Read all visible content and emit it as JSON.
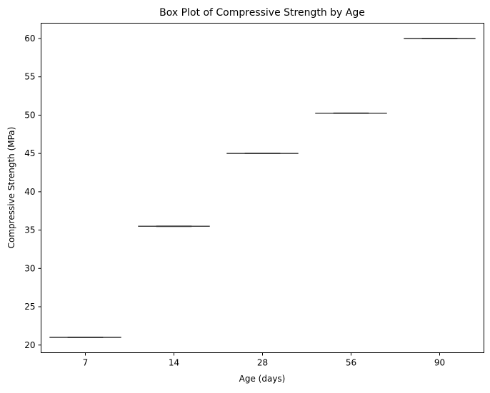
{
  "chart_data": {
    "type": "box",
    "title": "Box Plot of Compressive Strength by Age",
    "xlabel": "Age (days)",
    "ylabel": "Compressive Strength (MPa)",
    "categories": [
      "7",
      "14",
      "28",
      "56",
      "90"
    ],
    "values": [
      21,
      35.5,
      45,
      50.25,
      60
    ],
    "boxes": [
      {
        "category": "7",
        "min": 21,
        "q1": 21,
        "median": 21,
        "q3": 21,
        "max": 21
      },
      {
        "category": "14",
        "min": 35.5,
        "q1": 35.5,
        "median": 35.5,
        "q3": 35.5,
        "max": 35.5
      },
      {
        "category": "28",
        "min": 45,
        "q1": 45,
        "median": 45,
        "q3": 45,
        "max": 45
      },
      {
        "category": "56",
        "min": 50.25,
        "q1": 50.25,
        "median": 50.25,
        "q3": 50.25,
        "max": 50.25
      },
      {
        "category": "90",
        "min": 60,
        "q1": 60,
        "median": 60,
        "q3": 60,
        "max": 60
      }
    ],
    "ylim": [
      19,
      62
    ],
    "yticks": [
      "20",
      "25",
      "30",
      "35",
      "40",
      "45",
      "50",
      "55",
      "60"
    ],
    "grid": false,
    "colors": {
      "line": "#3f3f3f"
    }
  }
}
